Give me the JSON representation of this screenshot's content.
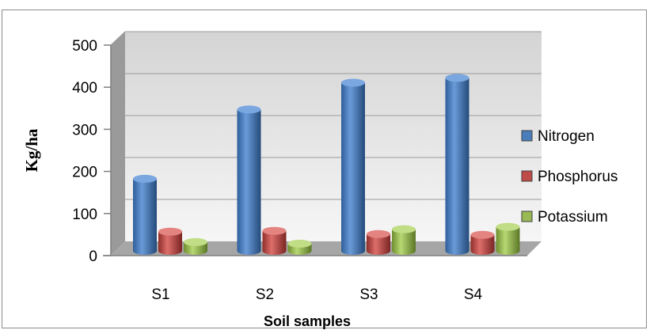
{
  "chart_data": {
    "type": "bar",
    "title": "",
    "xlabel": "Soil samples",
    "ylabel": "Kg/ha",
    "categories": [
      "S1",
      "S2",
      "S3",
      "S4"
    ],
    "series": [
      {
        "name": "Nitrogen",
        "values": [
          180,
          353,
          420,
          432
        ]
      },
      {
        "name": "Phosphorus",
        "values": [
          48,
          50,
          42,
          40
        ]
      },
      {
        "name": "Potassium",
        "values": [
          22,
          18,
          54,
          60
        ]
      }
    ],
    "ylim": [
      0,
      500
    ],
    "yticks": [
      0,
      100,
      200,
      300,
      400,
      500
    ],
    "grid": true,
    "legend": "right",
    "colors": {
      "Nitrogen": "#4a7ebb",
      "Phosphorus": "#be4b48",
      "Potassium": "#98b954"
    }
  }
}
